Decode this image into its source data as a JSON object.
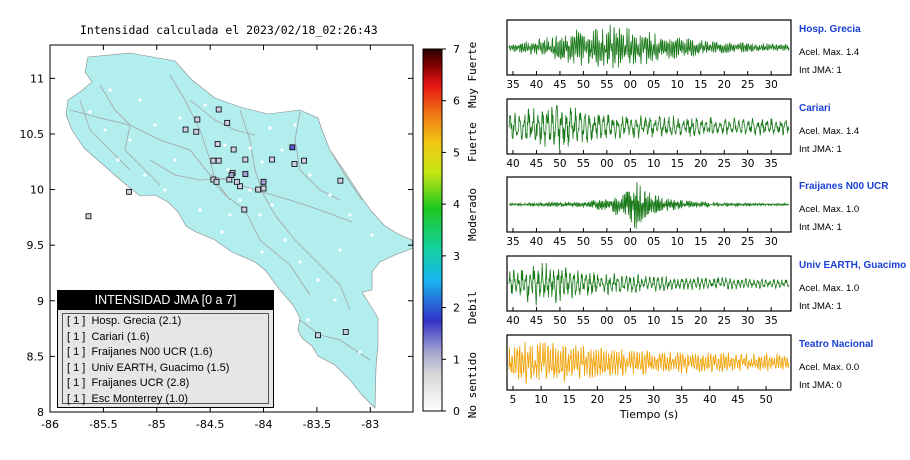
{
  "map": {
    "title": "Intensidad calculada el 2023/02/18_02:26:43",
    "x_ticks": [
      "-86",
      "-85.5",
      "-85",
      "-84.5",
      "-84",
      "-83.5",
      "-83"
    ],
    "y_ticks": [
      "11",
      "10.5",
      "10",
      "9.5",
      "9",
      "8.5",
      "8"
    ],
    "xlim": [
      -86,
      -82.6
    ],
    "ylim": [
      8,
      11.3
    ],
    "land_color": "#b2eeee",
    "stations_on_map": [
      {
        "lon": -84.22,
        "lat": 10.03,
        "jma": 1
      },
      {
        "lon": -84.47,
        "lat": 10.26,
        "jma": 1
      },
      {
        "lon": -84.42,
        "lat": 10.26,
        "jma": 1
      },
      {
        "lon": -84.43,
        "lat": 10.41,
        "jma": 1
      },
      {
        "lon": -84.63,
        "lat": 10.52,
        "jma": 1
      },
      {
        "lon": -84.42,
        "lat": 10.72,
        "jma": 1
      },
      {
        "lon": -84.34,
        "lat": 10.6,
        "jma": 1
      },
      {
        "lon": -84.28,
        "lat": 10.36,
        "jma": 1
      },
      {
        "lon": -84.17,
        "lat": 10.27,
        "jma": 1
      },
      {
        "lon": -84.29,
        "lat": 10.15,
        "jma": 1
      },
      {
        "lon": -84.32,
        "lat": 10.09,
        "jma": 1
      },
      {
        "lon": -84.25,
        "lat": 10.07,
        "jma": 1
      },
      {
        "lon": -84.47,
        "lat": 10.09,
        "jma": 1
      },
      {
        "lon": -84.44,
        "lat": 10.07,
        "jma": 1
      },
      {
        "lon": -84.05,
        "lat": 10.0,
        "jma": 1
      },
      {
        "lon": -84.0,
        "lat": 10.01,
        "jma": 1
      },
      {
        "lon": -83.92,
        "lat": 10.27,
        "jma": 1
      },
      {
        "lon": -83.71,
        "lat": 10.23,
        "jma": 1
      },
      {
        "lon": -83.62,
        "lat": 10.26,
        "jma": 1
      },
      {
        "lon": -83.28,
        "lat": 10.08,
        "jma": 1
      },
      {
        "lon": -84.62,
        "lat": 10.63,
        "jma": 1
      },
      {
        "lon": -84.73,
        "lat": 10.54,
        "jma": 1
      },
      {
        "lon": -85.26,
        "lat": 9.98,
        "jma": 1
      },
      {
        "lon": -85.64,
        "lat": 9.76,
        "jma": 1
      },
      {
        "lon": -84.18,
        "lat": 9.82,
        "jma": 1
      },
      {
        "lon": -83.49,
        "lat": 8.69,
        "jma": 1
      },
      {
        "lon": -83.23,
        "lat": 8.72,
        "jma": 1
      },
      {
        "lon": -84.17,
        "lat": 10.14,
        "jma": 2
      },
      {
        "lon": -84.3,
        "lat": 10.13,
        "jma": 2
      },
      {
        "lon": -84.0,
        "lat": 10.07,
        "jma": 2
      },
      {
        "lon": -83.73,
        "lat": 10.38,
        "jma": 3
      }
    ]
  },
  "legend": {
    "title": "INTENSIDAD JMA [0 a 7]",
    "rows": [
      "[ 1 ]  Hosp. Grecia (2.1)",
      "[ 1 ]  Cariari (1.6)",
      "[ 1 ]  Fraijanes N00 UCR (1.6)",
      "[ 1 ]  Univ EARTH, Guacimo (1.5)",
      "[ 1 ]  Fraijanes UCR (2.8)",
      "[ 1 ]  Esc Monterrey (1.0)"
    ]
  },
  "colorbar": {
    "ticks": [
      "0",
      "1",
      "2",
      "3",
      "4",
      "5",
      "6",
      "7"
    ],
    "labels": [
      {
        "text": "No sentido",
        "at": 0.5
      },
      {
        "text": "Debil",
        "at": 2.0
      },
      {
        "text": "Moderado",
        "at": 3.8
      },
      {
        "text": "Fuerte",
        "at": 5.2
      },
      {
        "text": "Muy Fuerte",
        "at": 6.5
      }
    ]
  },
  "chart_data": [
    {
      "type": "line",
      "station": "Hosp. Grecia",
      "acel_label": "Acel. Max. 1.4",
      "jma_label": "Int JMA: 1",
      "color": "#1a7a1a",
      "x_ticks": [
        "35",
        "40",
        "45",
        "50",
        "55",
        "00",
        "05",
        "10",
        "15",
        "20",
        "25",
        "30"
      ],
      "envelope": [
        0.15,
        0.35,
        0.6,
        0.85,
        1.0,
        0.8,
        0.55,
        0.4,
        0.3,
        0.22,
        0.18,
        0.15
      ],
      "cycles": 150
    },
    {
      "type": "line",
      "station": "Cariari",
      "acel_label": "Acel. Max. 1.4",
      "jma_label": "Int JMA: 1",
      "color": "#1a7a1a",
      "x_ticks": [
        "40",
        "45",
        "50",
        "55",
        "00",
        "05",
        "10",
        "15",
        "20",
        "25",
        "30",
        "35"
      ],
      "envelope": [
        0.5,
        0.9,
        1.0,
        0.7,
        0.55,
        0.5,
        0.45,
        0.45,
        0.42,
        0.4,
        0.4,
        0.35
      ],
      "cycles": 60
    },
    {
      "type": "line",
      "station": "Fraijanes N00 UCR",
      "acel_label": "Acel. Max. 1.0",
      "jma_label": "Int JMA: 1",
      "color": "#1a7a1a",
      "x_ticks": [
        "35",
        "40",
        "45",
        "50",
        "55",
        "00",
        "05",
        "10",
        "15",
        "20",
        "25",
        "30"
      ],
      "envelope": [
        0.06,
        0.08,
        0.1,
        0.12,
        0.35,
        1.0,
        0.3,
        0.18,
        0.1,
        0.07,
        0.05,
        0.05
      ],
      "cycles": 180
    },
    {
      "type": "line",
      "station": "Univ EARTH, Guacimo",
      "acel_label": "Acel. Max. 1.0",
      "jma_label": "Int JMA: 1",
      "color": "#1a7a1a",
      "x_ticks": [
        "40",
        "45",
        "50",
        "55",
        "00",
        "05",
        "10",
        "15",
        "20",
        "25",
        "30",
        "35"
      ],
      "envelope": [
        0.5,
        1.0,
        0.8,
        0.55,
        0.45,
        0.4,
        0.35,
        0.3,
        0.28,
        0.25,
        0.22,
        0.2
      ],
      "cycles": 70
    },
    {
      "type": "line",
      "station": "Teatro Nacional",
      "acel_label": "Acel. Max. 0.0",
      "jma_label": "Int JMA: 0",
      "color": "#f0a000",
      "x_ticks": [
        "5",
        "10",
        "15",
        "20",
        "25",
        "30",
        "35",
        "40",
        "45",
        "50"
      ],
      "xlabel": "Tiempo (s)",
      "envelope": [
        0.7,
        1.0,
        0.85,
        0.7,
        0.6,
        0.55,
        0.5,
        0.45,
        0.45,
        0.4,
        0.4,
        0.35
      ],
      "cycles": 110
    }
  ]
}
